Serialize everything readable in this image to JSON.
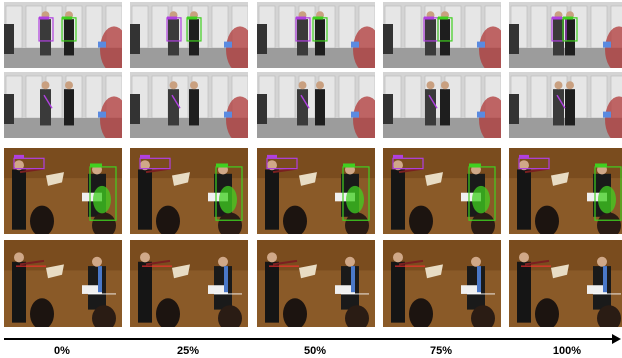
{
  "progress_labels": [
    "0%",
    "25%",
    "50%",
    "75%",
    "100%"
  ],
  "rows": [
    {
      "scene": "studio",
      "overlay": "box"
    },
    {
      "scene": "studio",
      "overlay": "none"
    },
    {
      "scene": "hall",
      "overlay": "box"
    },
    {
      "scene": "hall",
      "overlay": "keypoints"
    }
  ],
  "colors": {
    "violin_box": "#b040e0",
    "cello_box": "#40d020",
    "studio_wall": "#d4d4d4",
    "hall_wall": "#8a5a28",
    "arrow": "#000000"
  },
  "icon_names": [
    "violinist-figure",
    "cellist-figure",
    "bow-marker",
    "arrow-right-icon"
  ]
}
